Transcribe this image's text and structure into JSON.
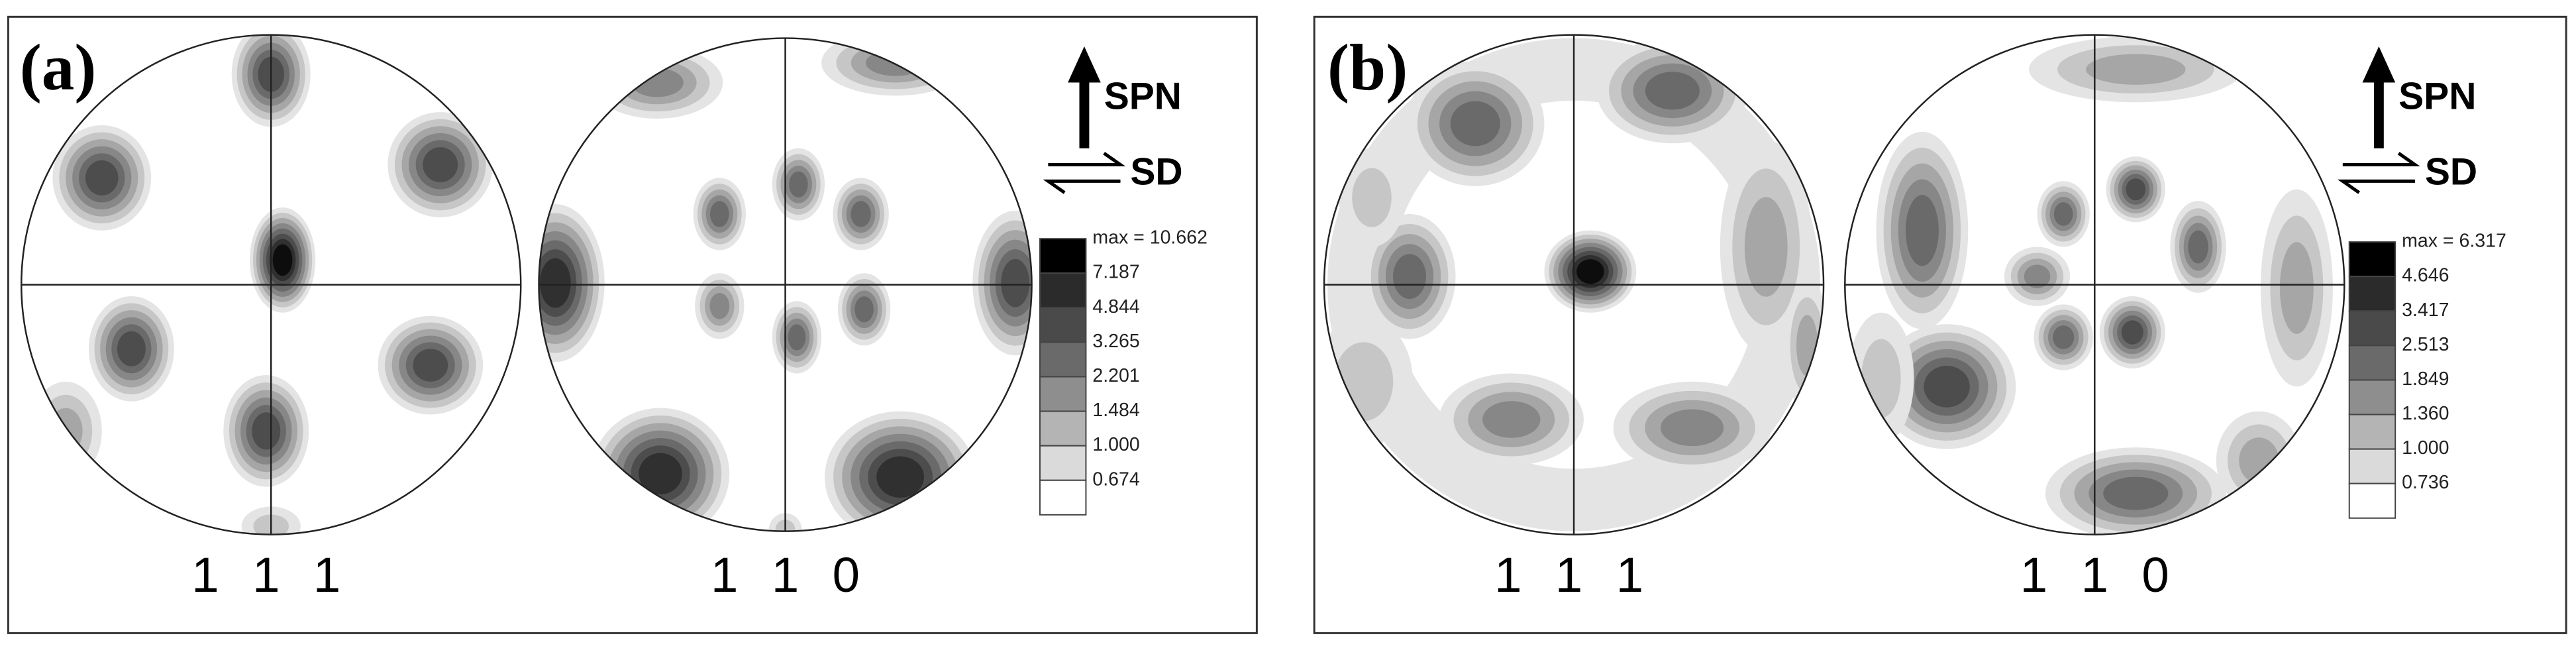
{
  "panels": [
    {
      "label": "(a)",
      "pole_figures": [
        {
          "label": "1 1 1"
        },
        {
          "label": "1 1 0"
        }
      ],
      "axes": {
        "up": "SPN",
        "side": "SD"
      },
      "legend": {
        "max": "max = 10.662",
        "levels": [
          "7.187",
          "4.844",
          "3.265",
          "2.201",
          "1.484",
          "1.000",
          "0.674"
        ]
      }
    },
    {
      "label": "(b)",
      "pole_figures": [
        {
          "label": "1 1 1"
        },
        {
          "label": "1 1 0"
        }
      ],
      "axes": {
        "up": "SPN",
        "side": "SD"
      },
      "legend": {
        "max": "max = 6.317",
        "levels": [
          "4.646",
          "3.417",
          "2.513",
          "1.849",
          "1.360",
          "1.000",
          "0.736"
        ]
      }
    }
  ]
}
